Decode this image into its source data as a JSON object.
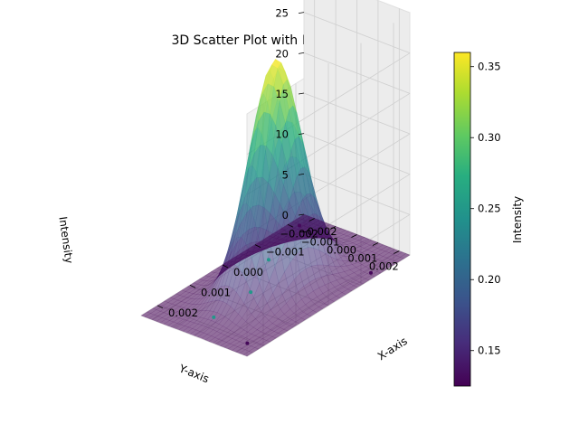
{
  "chart_data": {
    "type": "scatter",
    "title": "3D Scatter Plot with Intensity",
    "xlabel": "X-axis",
    "ylabel": "Y-axis",
    "zlabel": "Intensity",
    "colorbar_label": "Intensity",
    "xlim": [
      -0.0025,
      0.0025
    ],
    "ylim": [
      -0.0025,
      0.0025
    ],
    "zlim": [
      0,
      30
    ],
    "x_ticks": [
      -0.002,
      -0.001,
      0.0,
      0.001,
      0.002
    ],
    "x_tick_labels": [
      "−0.002",
      "−0.001",
      "0.000",
      "0.001",
      "0.002"
    ],
    "y_ticks": [
      -0.002,
      -0.001,
      0.0,
      0.001,
      0.002
    ],
    "y_tick_labels": [
      "−0.002",
      "−0.001",
      "0.000",
      "0.001",
      "0.002"
    ],
    "z_ticks": [
      0,
      5,
      10,
      15,
      20,
      25
    ],
    "z_tick_labels": [
      "0",
      "5",
      "10",
      "15",
      "20",
      "25"
    ],
    "colorbar_range": [
      0.125,
      0.36
    ],
    "colorbar_ticks": [
      0.15,
      0.2,
      0.25,
      0.3,
      0.35
    ],
    "colorbar_tick_labels": [
      "0.15",
      "0.20",
      "0.25",
      "0.30",
      "0.35"
    ],
    "surface": {
      "function": "gaussian",
      "peak_z": 28,
      "sigma": 0.0007,
      "colormap": "viridis",
      "alpha": 0.55
    },
    "points": [
      {
        "x": -0.0015,
        "y": 0.0022,
        "z": 0,
        "intensity": 0.13
      },
      {
        "x": -0.0021,
        "y": -0.0021,
        "z": 0,
        "intensity": 0.13
      },
      {
        "x": 0.0021,
        "y": 0.0019,
        "z": 0,
        "intensity": 0.13
      },
      {
        "x": 0.0017,
        "y": -0.0003,
        "z": 0,
        "intensity": 0.25
      },
      {
        "x": 0.0005,
        "y": -0.0004,
        "z": 0,
        "intensity": 0.25
      },
      {
        "x": -0.0007,
        "y": -0.0014,
        "z": 0,
        "intensity": 0.25
      }
    ],
    "grid": true
  }
}
